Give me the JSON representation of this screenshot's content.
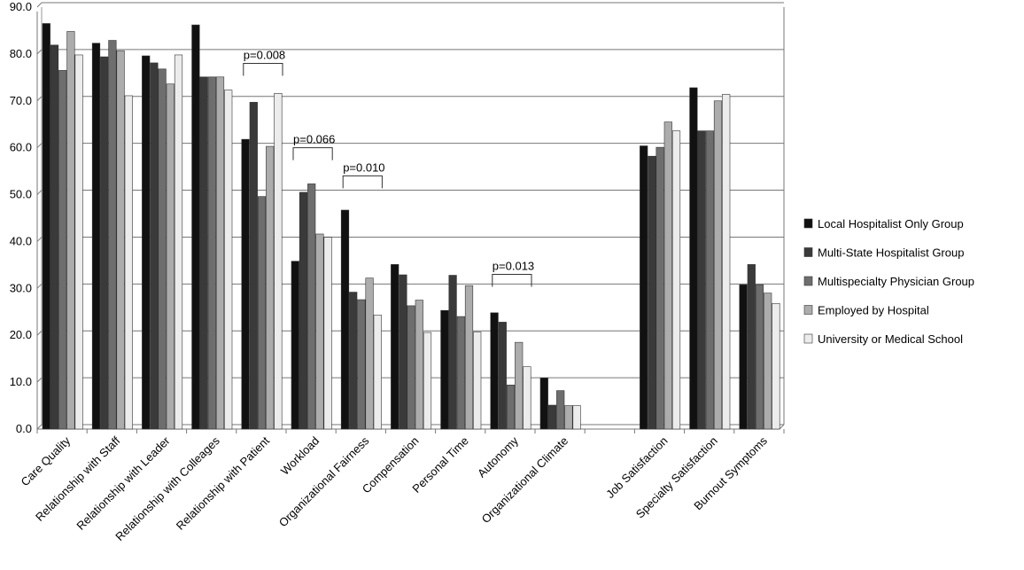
{
  "chart_data": {
    "type": "bar",
    "title": "",
    "xlabel": "",
    "ylabel": "",
    "ylim": [
      0,
      90
    ],
    "yticks": [
      "0.0",
      "10.0",
      "20.0",
      "30.0",
      "40.0",
      "50.0",
      "60.0",
      "70.0",
      "80.0",
      "90.0"
    ],
    "grid": true,
    "legend_position": "right",
    "categories": [
      "Care Quality",
      "Relationship with Staff",
      "Relationship with Leader",
      "Relationship with Colleages",
      "Relationship with Patient",
      "Workload",
      "Organizational Fairness",
      "Compensation",
      "Personal Time",
      "Autonomy",
      "Organizational Climate",
      "",
      "Job Satisfaction",
      "Specialty Satisfaction",
      "Burnout Symptoms"
    ],
    "series": [
      {
        "name": "Local Hospitalist Only Group",
        "color": "#111111",
        "values": [
          86.5,
          82.3,
          79.6,
          86.2,
          61.8,
          35.8,
          46.7,
          35.1,
          25.3,
          24.8,
          10.9,
          null,
          60.4,
          72.8,
          30.8
        ]
      },
      {
        "name": "Multi-State Hospitalist Group",
        "color": "#3a3a3a",
        "values": [
          81.9,
          79.4,
          78.1,
          75.1,
          69.7,
          50.5,
          29.2,
          32.9,
          32.8,
          22.8,
          5.1,
          null,
          58.2,
          63.6,
          35.1
        ]
      },
      {
        "name": "Multispecialty Physician Group",
        "color": "#6e6e6e",
        "values": [
          76.5,
          82.9,
          76.8,
          75.1,
          49.6,
          52.3,
          27.6,
          26.3,
          24.0,
          9.4,
          8.2,
          null,
          60.1,
          63.6,
          30.8
        ]
      },
      {
        "name": "Employed by Hospital",
        "color": "#acacac",
        "values": [
          84.8,
          80.7,
          73.6,
          75.1,
          60.3,
          41.6,
          32.2,
          27.5,
          30.6,
          18.5,
          5.0,
          null,
          65.5,
          70.0,
          29.0
        ]
      },
      {
        "name": "University or Medical School",
        "color": "#ececec",
        "values": [
          79.8,
          71.1,
          79.8,
          72.3,
          71.6,
          40.9,
          24.3,
          20.6,
          20.7,
          13.3,
          5.0,
          null,
          63.6,
          71.4,
          26.8
        ]
      }
    ],
    "annotations": [
      {
        "text": "p=0.008",
        "category_index": 4,
        "y_bracket": 78.0
      },
      {
        "text": "p=0.066",
        "category_index": 5,
        "y_bracket": 60.0
      },
      {
        "text": "p=0.010",
        "category_index": 6,
        "y_bracket": 54.0
      },
      {
        "text": "p=0.013",
        "category_index": 9,
        "y_bracket": 33.0
      }
    ]
  }
}
